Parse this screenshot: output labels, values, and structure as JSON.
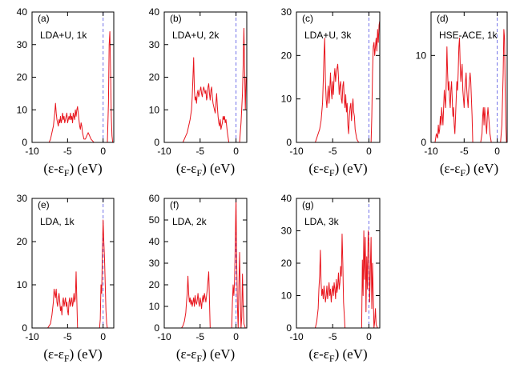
{
  "colors": {
    "series": "#e8141c",
    "fermi": "#7070e8",
    "axis": "#000000"
  },
  "xlabel": {
    "prefix": "(ε-ε",
    "sub": "F",
    "suffix": ") (eV)"
  },
  "chart_data": [
    {
      "id": "a",
      "type": "line",
      "tag": "(a)",
      "annotation": "LDA+U, 1k",
      "xlim": [
        -10,
        1.5
      ],
      "ylim": [
        0,
        40
      ],
      "xticks": [
        -10,
        -5,
        0
      ],
      "yticks": [
        0,
        10,
        20,
        30,
        40
      ],
      "fermi_level": 0,
      "x": [
        -7.6,
        -7.4,
        -7.2,
        -7.0,
        -6.9,
        -6.8,
        -6.7,
        -6.6,
        -6.5,
        -6.4,
        -6.3,
        -6.2,
        -6.1,
        -6.0,
        -5.9,
        -5.8,
        -5.7,
        -5.6,
        -5.5,
        -5.4,
        -5.3,
        -5.2,
        -5.1,
        -5.0,
        -4.9,
        -4.8,
        -4.7,
        -4.6,
        -4.5,
        -4.4,
        -4.3,
        -4.2,
        -4.1,
        -4.0,
        -3.9,
        -3.8,
        -3.7,
        -3.6,
        -3.5,
        -3.4,
        -3.3,
        -3.2,
        -3.1,
        -3.0,
        -2.9,
        -2.8,
        -2.7,
        -2.5,
        -2.3,
        -2.1,
        -1.9,
        -1.7,
        -1.5,
        -1.3,
        -1.1,
        -0.9,
        -0.8,
        0.6,
        0.75,
        0.85,
        0.95,
        1.05,
        1.15,
        1.25,
        1.35
      ],
      "y": [
        0,
        1,
        3,
        5,
        7,
        9,
        12,
        9,
        7,
        6,
        5,
        7,
        6,
        8,
        6,
        7,
        9,
        7,
        8,
        6,
        7,
        8,
        9,
        6,
        7,
        8,
        7,
        9,
        7,
        8,
        6,
        9,
        8,
        7,
        10,
        8,
        10,
        11,
        9,
        7,
        5,
        4,
        6,
        5,
        3,
        2,
        1,
        1,
        2,
        3,
        2,
        1,
        0.5,
        0,
        0,
        0,
        0,
        0,
        12,
        30,
        34,
        22,
        8,
        2,
        0
      ]
    },
    {
      "id": "b",
      "type": "line",
      "tag": "(b)",
      "annotation": "LDA+U, 2k",
      "xlim": [
        -10,
        1.5
      ],
      "ylim": [
        0,
        40
      ],
      "xticks": [
        -10,
        -5,
        0
      ],
      "yticks": [
        0,
        10,
        20,
        30,
        40
      ],
      "fermi_level": 0,
      "x": [
        -7.4,
        -7.2,
        -7.0,
        -6.8,
        -6.6,
        -6.4,
        -6.2,
        -6.1,
        -6.0,
        -5.9,
        -5.8,
        -5.7,
        -5.6,
        -5.5,
        -5.4,
        -5.3,
        -5.2,
        -5.1,
        -5.0,
        -4.9,
        -4.8,
        -4.7,
        -4.6,
        -4.5,
        -4.4,
        -4.3,
        -4.2,
        -4.1,
        -4.0,
        -3.9,
        -3.8,
        -3.7,
        -3.6,
        -3.5,
        -3.4,
        -3.3,
        -3.2,
        -3.1,
        -3.0,
        -2.9,
        -2.8,
        -2.7,
        -2.6,
        -2.5,
        -2.4,
        -2.3,
        -2.2,
        -2.1,
        -2.0,
        -1.9,
        -1.8,
        -1.7,
        -1.6,
        -1.5,
        -1.4,
        -1.2,
        -1.0,
        0.5,
        0.7,
        0.9,
        1.0,
        1.1,
        1.2,
        1.3,
        1.4
      ],
      "y": [
        0,
        1,
        2,
        3,
        5,
        7,
        10,
        14,
        20,
        26,
        16,
        13,
        14,
        12,
        15,
        16,
        14,
        15,
        16,
        17,
        15,
        14,
        16,
        17,
        16,
        15,
        16,
        13,
        14,
        17,
        18,
        15,
        13,
        16,
        17,
        14,
        12,
        11,
        10,
        9,
        12,
        15,
        11,
        8,
        6,
        5,
        7,
        4,
        5,
        6,
        8,
        7,
        8,
        6,
        7,
        3,
        0,
        0,
        6,
        15,
        24,
        35,
        22,
        10,
        20
      ]
    },
    {
      "id": "c",
      "type": "line",
      "tag": "(c)",
      "annotation": "LDA+U, 3k",
      "xlim": [
        -10,
        1.5
      ],
      "ylim": [
        0,
        30
      ],
      "xticks": [
        -10,
        -5,
        0
      ],
      "yticks": [
        0,
        10,
        20,
        30
      ],
      "fermi_level": 0,
      "x": [
        -7.4,
        -7.2,
        -7.0,
        -6.8,
        -6.6,
        -6.4,
        -6.3,
        -6.2,
        -6.1,
        -6.0,
        -5.9,
        -5.8,
        -5.7,
        -5.6,
        -5.5,
        -5.4,
        -5.3,
        -5.2,
        -5.1,
        -5.0,
        -4.9,
        -4.8,
        -4.7,
        -4.6,
        -4.5,
        -4.4,
        -4.3,
        -4.2,
        -4.1,
        -4.0,
        -3.9,
        -3.8,
        -3.7,
        -3.6,
        -3.5,
        -3.4,
        -3.3,
        -3.2,
        -3.1,
        -3.0,
        -2.9,
        -2.8,
        -2.7,
        -2.6,
        -2.5,
        -2.4,
        -2.3,
        -2.2,
        -2.1,
        -2.0,
        -1.9,
        -1.8,
        -1.7,
        -1.6,
        -1.4,
        -1.2,
        0.3,
        0.4,
        0.5,
        0.6,
        0.7,
        0.8,
        0.9,
        1.0,
        1.1,
        1.2,
        1.3,
        1.4,
        1.5
      ],
      "y": [
        0,
        1,
        2,
        3,
        5,
        9,
        14,
        20,
        24,
        14,
        10,
        8,
        11,
        13,
        9,
        12,
        16,
        12,
        10,
        14,
        11,
        15,
        17,
        14,
        16,
        17,
        18,
        15,
        11,
        13,
        14,
        10,
        9,
        13,
        14,
        10,
        8,
        11,
        7,
        9,
        4,
        2,
        6,
        8,
        9,
        5,
        8,
        10,
        7,
        6,
        3,
        2,
        1,
        0.5,
        0,
        0,
        0,
        6,
        16,
        22,
        23,
        20,
        22,
        24,
        21,
        26,
        23,
        27,
        28
      ]
    },
    {
      "id": "d",
      "type": "line",
      "tag": "(d)",
      "annotation": "HSE-ACE, 1k",
      "xlim": [
        -10,
        1.5
      ],
      "ylim": [
        0,
        15
      ],
      "xticks": [
        -10,
        -5,
        0
      ],
      "yticks": [
        0,
        10
      ],
      "fermi_level": 0,
      "x": [
        -9.4,
        -9.2,
        -9.0,
        -8.9,
        -8.8,
        -8.7,
        -8.6,
        -8.5,
        -8.4,
        -8.3,
        -8.2,
        -8.1,
        -8.0,
        -7.9,
        -7.8,
        -7.7,
        -7.6,
        -7.5,
        -7.4,
        -7.3,
        -7.2,
        -7.1,
        -7.0,
        -6.9,
        -6.8,
        -6.7,
        -6.6,
        -6.5,
        -6.4,
        -6.3,
        -6.2,
        -6.1,
        -6.0,
        -5.9,
        -5.8,
        -5.7,
        -5.6,
        -5.5,
        -5.4,
        -5.3,
        -5.2,
        -5.1,
        -5.0,
        -4.9,
        -4.8,
        -4.7,
        -4.6,
        -4.5,
        -4.4,
        -4.3,
        -4.2,
        -4.1,
        -4.0,
        -3.9,
        -3.8,
        -3.7,
        -3.5,
        -3.0,
        -2.5,
        -2.3,
        -2.2,
        -2.1,
        -2.0,
        -1.9,
        -1.8,
        -1.7,
        -1.6,
        -1.5,
        -1.4,
        -1.3,
        -1.2,
        -1.1,
        -1.0,
        -0.9,
        -0.8,
        0.5,
        0.7,
        0.9,
        1.0,
        1.1,
        1.2,
        1.3,
        1.4
      ],
      "y": [
        0,
        1,
        0.5,
        2,
        1,
        1.5,
        3,
        2,
        4,
        3,
        2,
        4,
        6,
        5,
        4,
        7,
        11,
        8,
        6,
        7,
        5,
        4,
        6,
        7,
        5,
        3,
        4,
        2,
        1,
        3,
        5,
        7,
        6,
        8,
        11,
        12,
        9,
        7,
        8,
        9,
        6,
        5,
        4,
        6,
        7,
        8,
        6,
        5,
        4,
        6,
        7,
        8,
        7,
        5,
        3,
        0,
        0,
        0,
        0,
        1,
        3,
        4,
        2,
        4,
        3,
        2,
        1,
        3,
        4,
        3,
        2,
        1,
        0.5,
        0,
        0,
        0,
        2,
        8,
        13,
        12,
        6,
        2,
        0
      ]
    },
    {
      "id": "e",
      "type": "line",
      "tag": "(e)",
      "annotation": "LDA, 1k",
      "xlim": [
        -10,
        1.5
      ],
      "ylim": [
        0,
        30
      ],
      "xticks": [
        -10,
        -5,
        0
      ],
      "yticks": [
        0,
        10,
        20,
        30
      ],
      "fermi_level": 0,
      "x": [
        -7.8,
        -7.6,
        -7.4,
        -7.2,
        -7.0,
        -6.9,
        -6.8,
        -6.7,
        -6.6,
        -6.5,
        -6.4,
        -6.3,
        -6.2,
        -6.1,
        -6.0,
        -5.9,
        -5.8,
        -5.7,
        -5.6,
        -5.5,
        -5.4,
        -5.3,
        -5.2,
        -5.1,
        -5.0,
        -4.9,
        -4.8,
        -4.7,
        -4.6,
        -4.5,
        -4.4,
        -4.3,
        -4.2,
        -4.1,
        -4.0,
        -3.9,
        -3.8,
        -3.6,
        -3.4,
        -2.0,
        -1.0,
        -0.5,
        -0.4,
        -0.3,
        -0.2,
        -0.1,
        0.0,
        0.1,
        0.2,
        0.3,
        0.4,
        0.5,
        0.6,
        0.8,
        1.0
      ],
      "y": [
        0,
        0.5,
        1,
        3,
        6,
        9,
        8,
        7,
        9,
        6,
        5,
        7,
        8,
        6,
        4,
        5,
        3,
        6,
        7,
        5,
        6,
        7,
        5,
        6,
        4,
        3,
        6,
        7,
        5,
        6,
        7,
        5,
        6,
        8,
        6,
        7,
        13,
        0,
        0,
        0,
        0,
        0,
        2,
        10,
        8,
        18,
        25,
        20,
        16,
        10,
        4,
        1,
        0,
        0,
        0
      ]
    },
    {
      "id": "f",
      "type": "line",
      "tag": "(f)",
      "annotation": "LDA, 2k",
      "xlim": [
        -10,
        1.5
      ],
      "ylim": [
        0,
        60
      ],
      "xticks": [
        -10,
        -5,
        0
      ],
      "yticks": [
        0,
        10,
        20,
        30,
        40,
        50,
        60
      ],
      "fermi_level": 0,
      "x": [
        -7.6,
        -7.4,
        -7.2,
        -7.0,
        -6.9,
        -6.8,
        -6.7,
        -6.6,
        -6.5,
        -6.4,
        -6.3,
        -6.2,
        -6.1,
        -6.0,
        -5.9,
        -5.8,
        -5.7,
        -5.6,
        -5.5,
        -5.4,
        -5.3,
        -5.2,
        -5.1,
        -5.0,
        -4.9,
        -4.8,
        -4.7,
        -4.6,
        -4.5,
        -4.4,
        -4.3,
        -4.2,
        -4.1,
        -4.0,
        -3.9,
        -3.8,
        -3.6,
        -3.2,
        -1.0,
        -0.6,
        -0.5,
        -0.4,
        -0.3,
        -0.2,
        -0.1,
        0.0,
        0.1,
        0.2,
        0.3,
        0.4,
        0.5,
        0.6,
        0.7,
        0.8,
        0.9,
        1.0,
        1.1,
        1.3
      ],
      "y": [
        0,
        1,
        3,
        7,
        12,
        16,
        24,
        16,
        12,
        14,
        11,
        13,
        10,
        12,
        14,
        10,
        15,
        12,
        11,
        13,
        16,
        12,
        10,
        14,
        12,
        9,
        13,
        15,
        12,
        16,
        14,
        12,
        15,
        18,
        22,
        26,
        0,
        0,
        0,
        0,
        12,
        20,
        15,
        22,
        40,
        60,
        30,
        10,
        0,
        20,
        35,
        15,
        0,
        5,
        25,
        10,
        2,
        0
      ]
    },
    {
      "id": "g",
      "type": "line",
      "tag": "(g)",
      "annotation": "LDA, 3k",
      "xlim": [
        -10,
        1.5
      ],
      "ylim": [
        0,
        40
      ],
      "xticks": [
        -10,
        -5,
        0
      ],
      "yticks": [
        0,
        10,
        20,
        30,
        40
      ],
      "fermi_level": 0,
      "x": [
        -7.4,
        -7.2,
        -7.0,
        -6.9,
        -6.8,
        -6.7,
        -6.6,
        -6.5,
        -6.4,
        -6.3,
        -6.2,
        -6.1,
        -6.0,
        -5.9,
        -5.8,
        -5.7,
        -5.6,
        -5.5,
        -5.4,
        -5.3,
        -5.2,
        -5.1,
        -5.0,
        -4.9,
        -4.8,
        -4.7,
        -4.6,
        -4.5,
        -4.4,
        -4.3,
        -4.2,
        -4.1,
        -4.0,
        -3.9,
        -3.8,
        -3.7,
        -3.6,
        -3.5,
        -3.3,
        -1.2,
        -1.0,
        -0.9,
        -0.8,
        -0.7,
        -0.6,
        -0.5,
        -0.4,
        -0.3,
        -0.2,
        -0.1,
        0.0,
        0.1,
        0.2,
        0.3,
        0.4,
        0.5,
        0.6,
        0.7,
        0.8,
        0.9,
        1.0,
        1.2
      ],
      "y": [
        0,
        2,
        6,
        12,
        16,
        24,
        14,
        10,
        12,
        9,
        13,
        11,
        8,
        10,
        13,
        9,
        11,
        14,
        10,
        12,
        8,
        11,
        13,
        10,
        14,
        12,
        9,
        15,
        11,
        13,
        17,
        12,
        14,
        19,
        16,
        29,
        20,
        8,
        0,
        0,
        0,
        21,
        10,
        30,
        15,
        28,
        5,
        22,
        12,
        30,
        26,
        8,
        18,
        28,
        6,
        20,
        10,
        0,
        2,
        6,
        1,
        0
      ]
    }
  ]
}
